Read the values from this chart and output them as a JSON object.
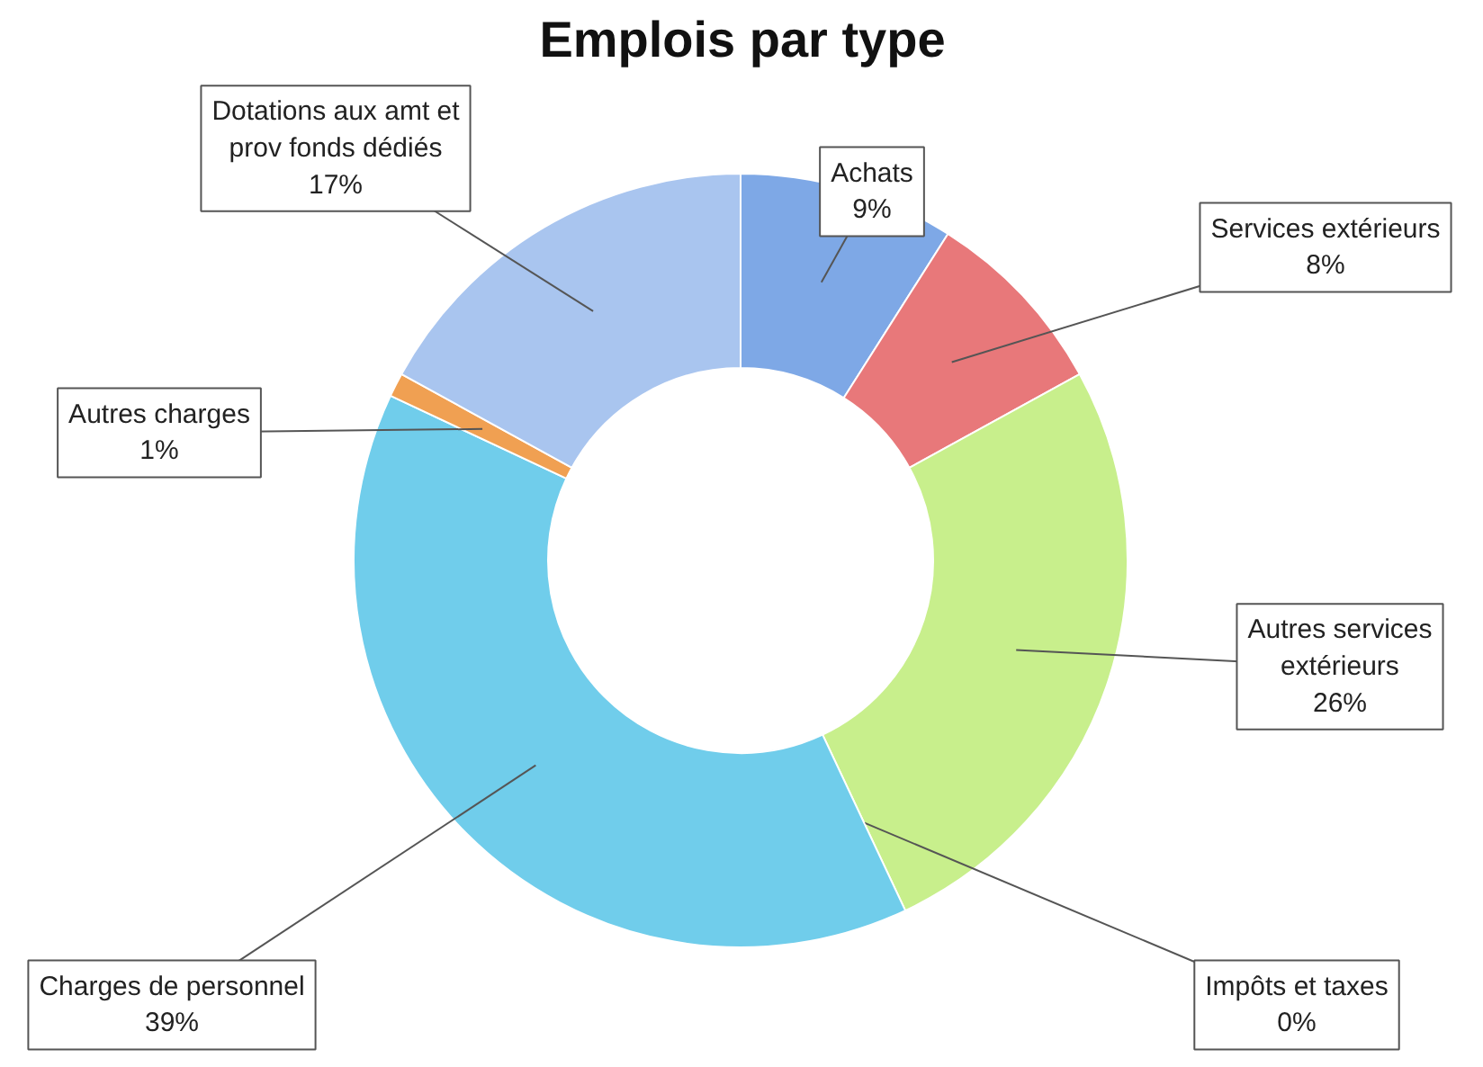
{
  "chart_data": {
    "type": "donut",
    "title": "Emplois par type",
    "categories": [
      "Achats",
      "Services extérieurs",
      "Autres services extérieurs",
      "Impôts et taxes",
      "Charges de personnel",
      "Autres charges",
      "Dotations aux amt et prov fonds dédiés"
    ],
    "values": [
      9,
      8,
      26,
      0,
      39,
      1,
      17
    ],
    "value_labels": [
      "9%",
      "8%",
      "26%",
      "0%",
      "39%",
      "1%",
      "17%"
    ],
    "colors": [
      "#7ea8e6",
      "#e8787a",
      "#c8ef8c",
      "#8a6cc4",
      "#70cdeb",
      "#f0a052",
      "#a9c5ef"
    ]
  }
}
